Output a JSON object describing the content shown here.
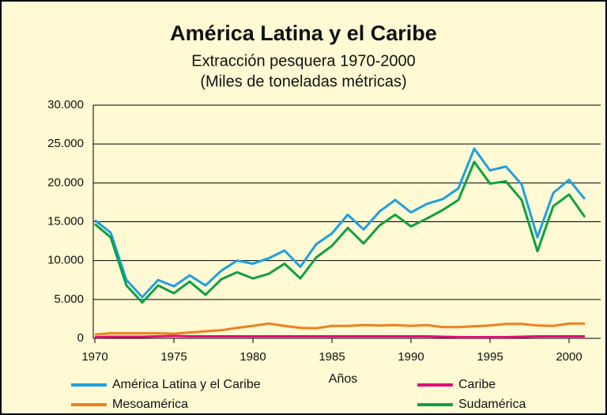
{
  "chart_data": {
    "type": "line",
    "title": "América Latina y el Caribe",
    "subtitle": [
      "Extracción pesquera 1970-2000",
      "(Miles de toneladas métricas)"
    ],
    "xlabel": "Años",
    "x": [
      1970,
      1971,
      1972,
      1973,
      1974,
      1975,
      1976,
      1977,
      1978,
      1979,
      1980,
      1981,
      1982,
      1983,
      1984,
      1985,
      1986,
      1987,
      1988,
      1989,
      1990,
      1991,
      1992,
      1993,
      1994,
      1995,
      1996,
      1997,
      1998,
      1999,
      2000,
      2001
    ],
    "series": [
      {
        "name": "América Latina y el Caribe",
        "color": "#1ea0e0",
        "values": [
          15200,
          13600,
          7500,
          5300,
          7500,
          6700,
          8100,
          6800,
          8700,
          10000,
          9600,
          10300,
          11300,
          9200,
          12100,
          13500,
          15900,
          14000,
          16300,
          17800,
          16200,
          17300,
          17900,
          19300,
          24400,
          21600,
          22100,
          19800,
          13000,
          18700,
          20400,
          17900
        ]
      },
      {
        "name": "Caribe",
        "color": "#e0107a",
        "values": [
          150,
          200,
          200,
          200,
          250,
          300,
          250,
          250,
          250,
          250,
          250,
          250,
          250,
          250,
          250,
          250,
          250,
          250,
          250,
          250,
          250,
          250,
          200,
          150,
          150,
          150,
          150,
          200,
          250,
          250,
          250,
          250
        ]
      },
      {
        "name": "Mesoamérica",
        "color": "#f08020",
        "values": [
          500,
          650,
          650,
          650,
          650,
          600,
          750,
          900,
          1050,
          1350,
          1600,
          1900,
          1600,
          1350,
          1300,
          1600,
          1600,
          1700,
          1650,
          1700,
          1600,
          1700,
          1450,
          1450,
          1550,
          1650,
          1850,
          1850,
          1650,
          1600,
          1900,
          1900
        ]
      },
      {
        "name": "Sudamérica",
        "color": "#10a040",
        "values": [
          14700,
          13000,
          6800,
          4600,
          6800,
          5800,
          7300,
          5600,
          7600,
          8500,
          7700,
          8300,
          9600,
          7700,
          10400,
          11900,
          14200,
          12200,
          14500,
          15900,
          14400,
          15400,
          16500,
          17800,
          22700,
          19900,
          20200,
          17800,
          11200,
          17000,
          18500,
          15600
        ]
      }
    ],
    "xlim": [
      1970,
      2002
    ],
    "xticks": [
      1970,
      1975,
      1980,
      1985,
      1990,
      1995,
      2000
    ],
    "ylim": [
      0,
      30000
    ],
    "yticks": [
      0,
      {
        "value": 5000,
        "label": "5.000"
      },
      {
        "value": 10000,
        "label": "10.000"
      },
      {
        "value": 15000,
        "label": "15.000"
      },
      {
        "value": 20000,
        "label": "20.000"
      },
      {
        "value": 25000,
        "label": "25.000"
      },
      {
        "value": 30000,
        "label": "30.000"
      }
    ],
    "grid": true,
    "legend": "bottom"
  }
}
